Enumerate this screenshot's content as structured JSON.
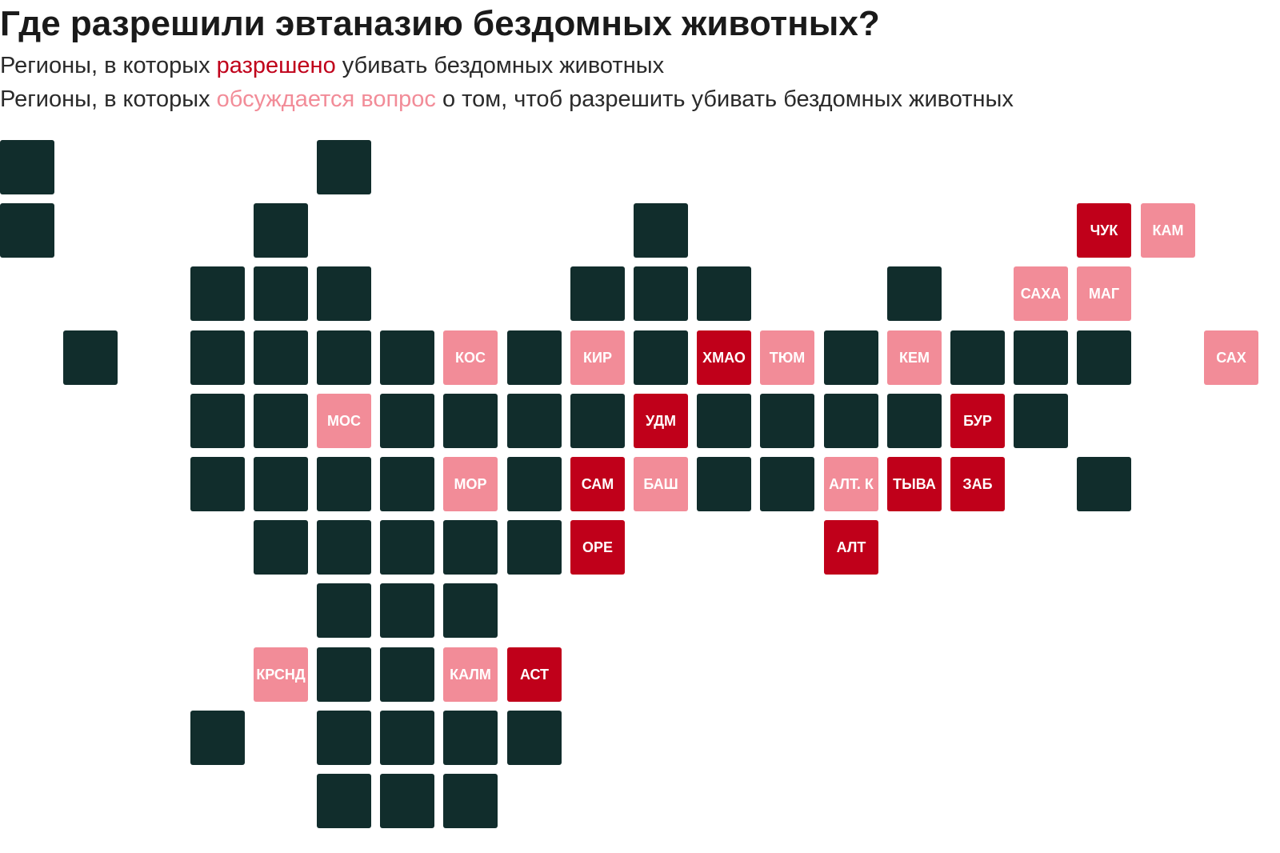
{
  "title": "Где разрешили эвтаназию бездомных животных?",
  "legend": {
    "allowed": {
      "prefix": "Регионы, в которых ",
      "highlight": "разрешено",
      "suffix": " убивать бездомных животных"
    },
    "discussed": {
      "prefix": "Регионы, в которых ",
      "highlight": "обсуждается вопрос",
      "suffix": " о том, чтоб разрешить убивать бездомных животных"
    }
  },
  "colors": {
    "default": "#112d2c",
    "allowed": "#c0001a",
    "discussed": "#f28c98"
  },
  "tile_map": [
    {
      "col": 0,
      "row": 0,
      "status": "default",
      "label": ""
    },
    {
      "col": 5,
      "row": 0,
      "status": "default",
      "label": ""
    },
    {
      "col": 0,
      "row": 1,
      "status": "default",
      "label": ""
    },
    {
      "col": 4,
      "row": 1,
      "status": "default",
      "label": ""
    },
    {
      "col": 10,
      "row": 1,
      "status": "default",
      "label": ""
    },
    {
      "col": 17,
      "row": 1,
      "status": "allowed",
      "label": "ЧУК"
    },
    {
      "col": 18,
      "row": 1,
      "status": "discussed",
      "label": "КАМ"
    },
    {
      "col": 3,
      "row": 2,
      "status": "default",
      "label": ""
    },
    {
      "col": 4,
      "row": 2,
      "status": "default",
      "label": ""
    },
    {
      "col": 5,
      "row": 2,
      "status": "default",
      "label": ""
    },
    {
      "col": 9,
      "row": 2,
      "status": "default",
      "label": ""
    },
    {
      "col": 10,
      "row": 2,
      "status": "default",
      "label": ""
    },
    {
      "col": 11,
      "row": 2,
      "status": "default",
      "label": ""
    },
    {
      "col": 14,
      "row": 2,
      "status": "default",
      "label": ""
    },
    {
      "col": 16,
      "row": 2,
      "status": "discussed",
      "label": "САХА"
    },
    {
      "col": 17,
      "row": 2,
      "status": "discussed",
      "label": "МАГ"
    },
    {
      "col": 1,
      "row": 3,
      "status": "default",
      "label": ""
    },
    {
      "col": 3,
      "row": 3,
      "status": "default",
      "label": ""
    },
    {
      "col": 4,
      "row": 3,
      "status": "default",
      "label": ""
    },
    {
      "col": 5,
      "row": 3,
      "status": "default",
      "label": ""
    },
    {
      "col": 6,
      "row": 3,
      "status": "default",
      "label": ""
    },
    {
      "col": 7,
      "row": 3,
      "status": "discussed",
      "label": "КОС"
    },
    {
      "col": 8,
      "row": 3,
      "status": "default",
      "label": ""
    },
    {
      "col": 9,
      "row": 3,
      "status": "discussed",
      "label": "КИР"
    },
    {
      "col": 10,
      "row": 3,
      "status": "default",
      "label": ""
    },
    {
      "col": 11,
      "row": 3,
      "status": "allowed",
      "label": "ХМАО"
    },
    {
      "col": 12,
      "row": 3,
      "status": "discussed",
      "label": "ТЮМ"
    },
    {
      "col": 13,
      "row": 3,
      "status": "default",
      "label": ""
    },
    {
      "col": 14,
      "row": 3,
      "status": "discussed",
      "label": "КЕМ"
    },
    {
      "col": 15,
      "row": 3,
      "status": "default",
      "label": ""
    },
    {
      "col": 16,
      "row": 3,
      "status": "default",
      "label": ""
    },
    {
      "col": 17,
      "row": 3,
      "status": "default",
      "label": ""
    },
    {
      "col": 19,
      "row": 3,
      "status": "discussed",
      "label": "САХ"
    },
    {
      "col": 3,
      "row": 4,
      "status": "default",
      "label": ""
    },
    {
      "col": 4,
      "row": 4,
      "status": "default",
      "label": ""
    },
    {
      "col": 5,
      "row": 4,
      "status": "discussed",
      "label": "МОС"
    },
    {
      "col": 6,
      "row": 4,
      "status": "default",
      "label": ""
    },
    {
      "col": 7,
      "row": 4,
      "status": "default",
      "label": ""
    },
    {
      "col": 8,
      "row": 4,
      "status": "default",
      "label": ""
    },
    {
      "col": 9,
      "row": 4,
      "status": "default",
      "label": ""
    },
    {
      "col": 10,
      "row": 4,
      "status": "allowed",
      "label": "УДМ"
    },
    {
      "col": 11,
      "row": 4,
      "status": "default",
      "label": ""
    },
    {
      "col": 12,
      "row": 4,
      "status": "default",
      "label": ""
    },
    {
      "col": 13,
      "row": 4,
      "status": "default",
      "label": ""
    },
    {
      "col": 14,
      "row": 4,
      "status": "default",
      "label": ""
    },
    {
      "col": 15,
      "row": 4,
      "status": "allowed",
      "label": "БУР"
    },
    {
      "col": 16,
      "row": 4,
      "status": "default",
      "label": ""
    },
    {
      "col": 3,
      "row": 5,
      "status": "default",
      "label": ""
    },
    {
      "col": 4,
      "row": 5,
      "status": "default",
      "label": ""
    },
    {
      "col": 5,
      "row": 5,
      "status": "default",
      "label": ""
    },
    {
      "col": 6,
      "row": 5,
      "status": "default",
      "label": ""
    },
    {
      "col": 7,
      "row": 5,
      "status": "discussed",
      "label": "МОР"
    },
    {
      "col": 8,
      "row": 5,
      "status": "default",
      "label": ""
    },
    {
      "col": 9,
      "row": 5,
      "status": "allowed",
      "label": "САМ"
    },
    {
      "col": 10,
      "row": 5,
      "status": "discussed",
      "label": "БАШ"
    },
    {
      "col": 11,
      "row": 5,
      "status": "default",
      "label": ""
    },
    {
      "col": 12,
      "row": 5,
      "status": "default",
      "label": ""
    },
    {
      "col": 13,
      "row": 5,
      "status": "discussed",
      "label": "АЛТ. К"
    },
    {
      "col": 14,
      "row": 5,
      "status": "allowed",
      "label": "ТЫВА"
    },
    {
      "col": 15,
      "row": 5,
      "status": "allowed",
      "label": "ЗАБ"
    },
    {
      "col": 17,
      "row": 5,
      "status": "default",
      "label": ""
    },
    {
      "col": 4,
      "row": 6,
      "status": "default",
      "label": ""
    },
    {
      "col": 5,
      "row": 6,
      "status": "default",
      "label": ""
    },
    {
      "col": 6,
      "row": 6,
      "status": "default",
      "label": ""
    },
    {
      "col": 7,
      "row": 6,
      "status": "default",
      "label": ""
    },
    {
      "col": 8,
      "row": 6,
      "status": "default",
      "label": ""
    },
    {
      "col": 9,
      "row": 6,
      "status": "allowed",
      "label": "ОРЕ"
    },
    {
      "col": 13,
      "row": 6,
      "status": "allowed",
      "label": "АЛТ"
    },
    {
      "col": 5,
      "row": 7,
      "status": "default",
      "label": ""
    },
    {
      "col": 6,
      "row": 7,
      "status": "default",
      "label": ""
    },
    {
      "col": 7,
      "row": 7,
      "status": "default",
      "label": ""
    },
    {
      "col": 4,
      "row": 8,
      "status": "discussed",
      "label": "КРСНД"
    },
    {
      "col": 5,
      "row": 8,
      "status": "default",
      "label": ""
    },
    {
      "col": 6,
      "row": 8,
      "status": "default",
      "label": ""
    },
    {
      "col": 7,
      "row": 8,
      "status": "discussed",
      "label": "КАЛМ"
    },
    {
      "col": 8,
      "row": 8,
      "status": "allowed",
      "label": "АСТ"
    },
    {
      "col": 3,
      "row": 9,
      "status": "default",
      "label": ""
    },
    {
      "col": 5,
      "row": 9,
      "status": "default",
      "label": ""
    },
    {
      "col": 6,
      "row": 9,
      "status": "default",
      "label": ""
    },
    {
      "col": 7,
      "row": 9,
      "status": "default",
      "label": ""
    },
    {
      "col": 8,
      "row": 9,
      "status": "default",
      "label": ""
    },
    {
      "col": 5,
      "row": 10,
      "status": "default",
      "label": ""
    },
    {
      "col": 6,
      "row": 10,
      "status": "default",
      "label": ""
    },
    {
      "col": 7,
      "row": 10,
      "status": "default",
      "label": ""
    }
  ]
}
